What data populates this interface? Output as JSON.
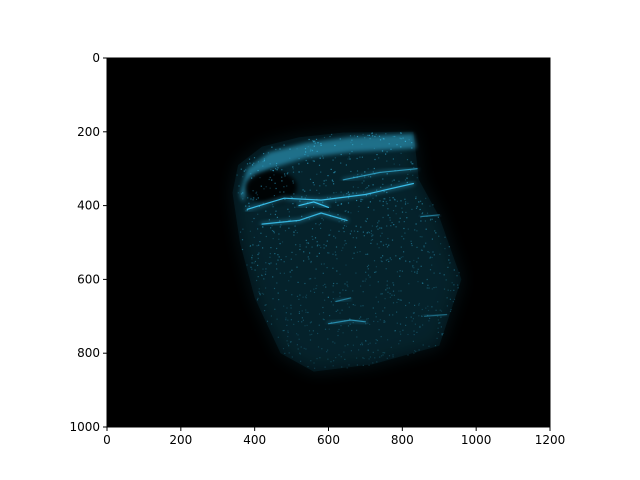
{
  "chart_data": {
    "type": "heatmap",
    "title": "",
    "xlabel": "",
    "ylabel": "",
    "xlim": [
      0,
      1200
    ],
    "ylim": [
      1000,
      0
    ],
    "x_ticks": [
      0,
      200,
      400,
      600,
      800,
      1000,
      1200
    ],
    "y_ticks": [
      0,
      200,
      400,
      600,
      800,
      1000
    ],
    "x_tick_labels": [
      "0",
      "200",
      "400",
      "600",
      "800",
      "1000",
      "1200"
    ],
    "y_tick_labels": [
      "0",
      "200",
      "400",
      "600",
      "800",
      "1000"
    ],
    "grid": false,
    "legend": "none",
    "image_content": "cyan-tinted ultrasound-style scan on a black background",
    "colors": {
      "background": "#000000",
      "signal": "#1aa0c8",
      "signal_bright": "#3fd0ff",
      "axes": "#000000"
    },
    "scan_region": {
      "outline": [
        [
          340,
          365
        ],
        [
          355,
          290
        ],
        [
          420,
          240
        ],
        [
          520,
          215
        ],
        [
          640,
          202
        ],
        [
          830,
          200
        ],
        [
          845,
          330
        ],
        [
          900,
          430
        ],
        [
          960,
          600
        ],
        [
          900,
          780
        ],
        [
          720,
          830
        ],
        [
          560,
          850
        ],
        [
          470,
          800
        ],
        [
          400,
          650
        ],
        [
          360,
          500
        ]
      ],
      "top_band": [
        [
          360,
          370
        ],
        [
          380,
          300
        ],
        [
          440,
          255
        ],
        [
          540,
          230
        ],
        [
          660,
          214
        ],
        [
          830,
          205
        ],
        [
          838,
          245
        ],
        [
          660,
          255
        ],
        [
          540,
          270
        ],
        [
          440,
          300
        ],
        [
          385,
          340
        ],
        [
          368,
          390
        ]
      ],
      "dark_cavity": {
        "cx": 445,
        "cy": 350,
        "rx": 70,
        "ry": 45
      },
      "bright_streaks": [
        {
          "points": [
            [
              380,
              410
            ],
            [
              480,
              380
            ],
            [
              580,
              385
            ],
            [
              700,
              370
            ],
            [
              830,
              340
            ]
          ],
          "intensity": 0.85
        },
        {
          "points": [
            [
              420,
              450
            ],
            [
              520,
              440
            ],
            [
              580,
              420
            ],
            [
              650,
              440
            ]
          ],
          "intensity": 0.8
        },
        {
          "points": [
            [
              520,
              400
            ],
            [
              560,
              390
            ],
            [
              600,
              405
            ]
          ],
          "intensity": 0.9
        },
        {
          "points": [
            [
              640,
              330
            ],
            [
              740,
              310
            ],
            [
              840,
              300
            ]
          ],
          "intensity": 0.6
        },
        {
          "points": [
            [
              600,
              720
            ],
            [
              660,
              710
            ],
            [
              700,
              715
            ]
          ],
          "intensity": 0.55
        },
        {
          "points": [
            [
              620,
              660
            ],
            [
              660,
              650
            ]
          ],
          "intensity": 0.45
        },
        {
          "points": [
            [
              860,
              700
            ],
            [
              920,
              695
            ]
          ],
          "intensity": 0.35
        },
        {
          "points": [
            [
              850,
              430
            ],
            [
              900,
              425
            ]
          ],
          "intensity": 0.45
        }
      ],
      "faint_columns": [
        {
          "x": 520,
          "y0": 480,
          "y1": 800
        },
        {
          "x": 640,
          "y0": 470,
          "y1": 780
        },
        {
          "x": 760,
          "y0": 460,
          "y1": 800
        }
      ]
    }
  }
}
